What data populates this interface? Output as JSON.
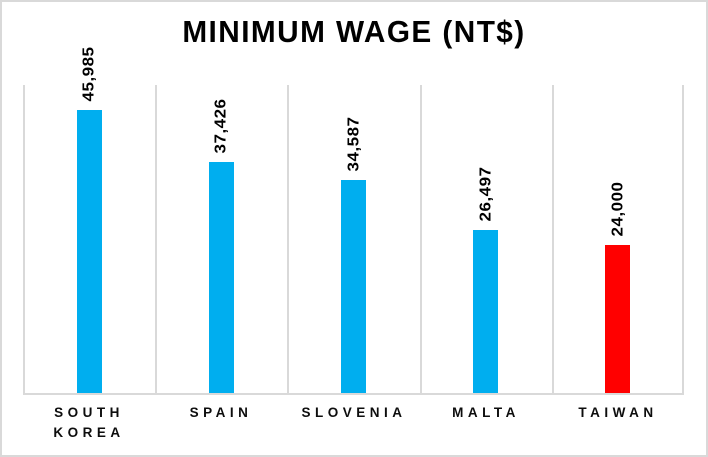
{
  "chart_data": {
    "type": "bar",
    "title": "MINIMUM WAGE (NT$)",
    "categories": [
      "SOUTH KOREA",
      "SPAIN",
      "SLOVENIA",
      "MALTA",
      "TAIWAN"
    ],
    "values": [
      45985,
      37426,
      34587,
      26497,
      24000
    ],
    "value_labels": [
      "45,985",
      "37,426",
      "34,587",
      "26,497",
      "24,000"
    ],
    "bar_colors": [
      "#00AEEF",
      "#00AEEF",
      "#00AEEF",
      "#00AEEF",
      "#FF0000"
    ],
    "value_label_rotation_deg": -90,
    "xlabel": "",
    "ylabel": "",
    "ylim": [
      0,
      50000
    ],
    "grid": "vertical category separators only",
    "legend": "none",
    "colors": {
      "default_bar": "#00AEEF",
      "highlight_bar": "#FF0000",
      "gridline": "#D9D9D9",
      "axis_line": "#D9D9D9",
      "border": "#D9D9D9",
      "title_text": "#000000",
      "label_text": "#0d0d0d",
      "background": "#FFFFFF"
    }
  }
}
